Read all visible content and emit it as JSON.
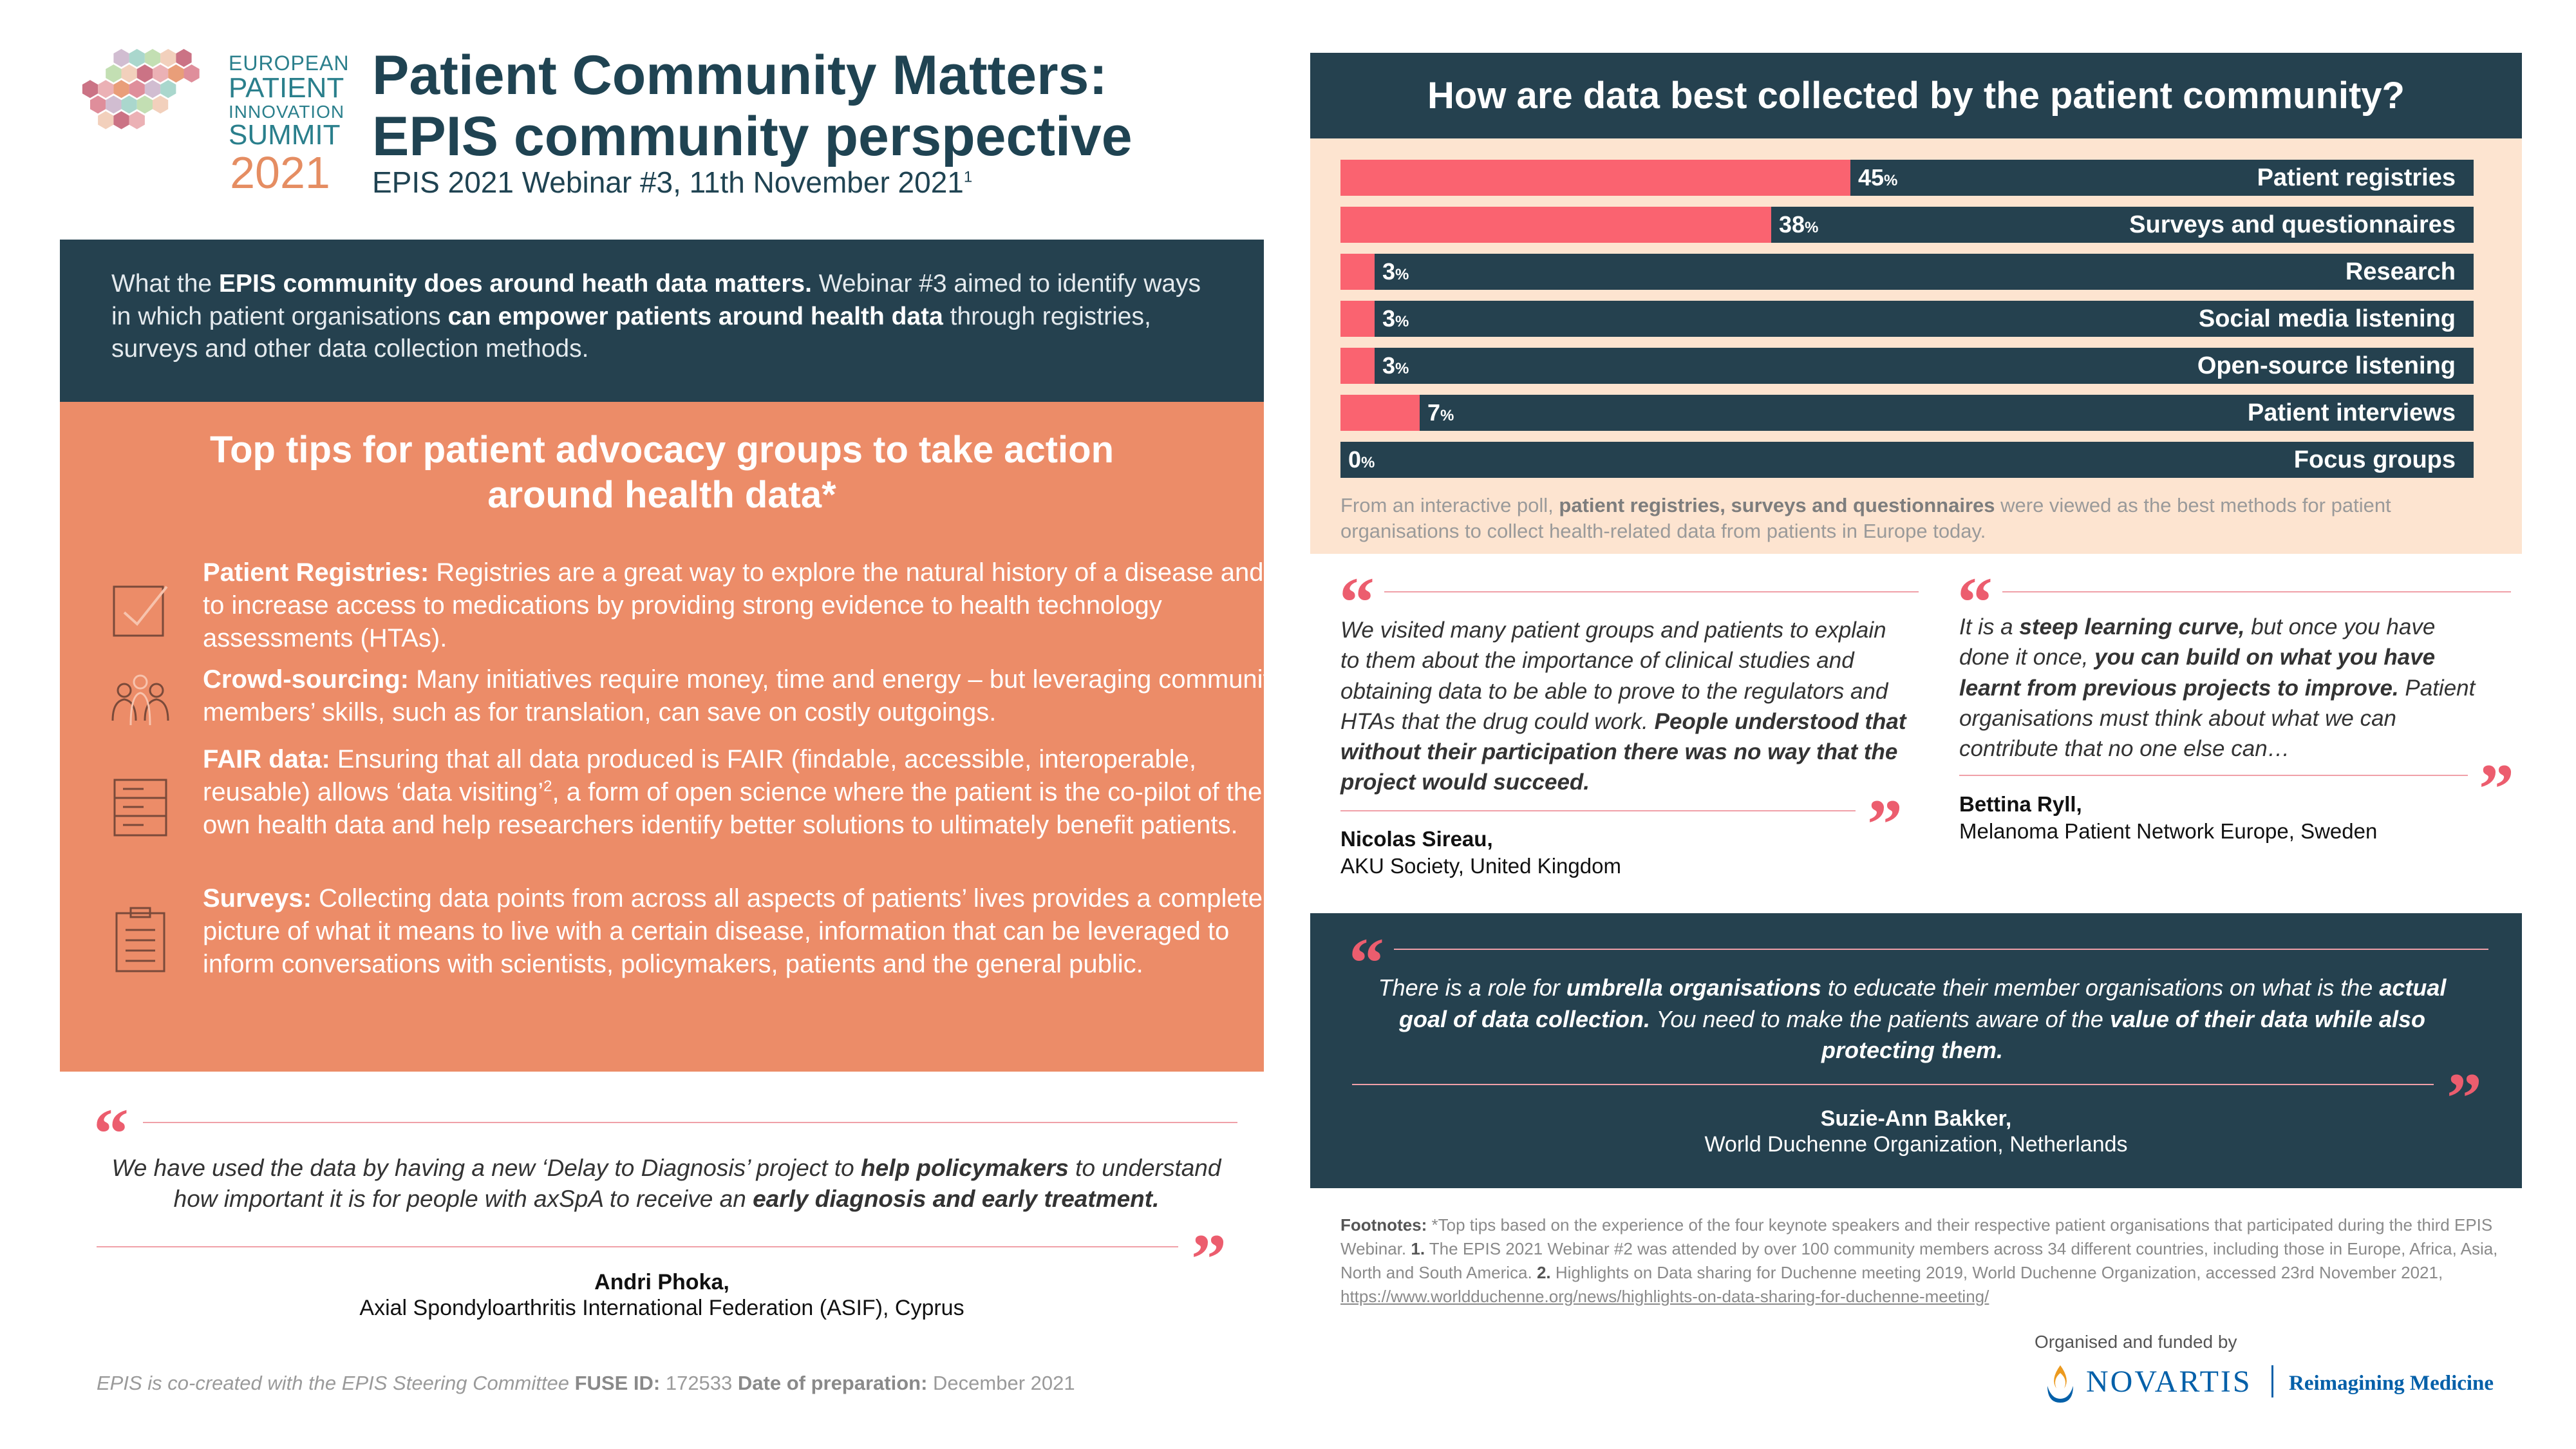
{
  "logo": {
    "line1": "EUROPEAN",
    "line2": "PATIENT",
    "line3": "INNOVATION",
    "line4": "SUMMIT",
    "year": "2021"
  },
  "header": {
    "title_line1": "Patient Community Matters:",
    "title_line2": "EPIS community perspective",
    "subtitle": "EPIS 2021 Webinar #3, 11th November 2021",
    "subtitle_sup": "1"
  },
  "intro": {
    "p1": "What the ",
    "b1": "EPIS community does around heath data matters.",
    "p2": " Webinar #3 aimed to identify ways in which patient organisations ",
    "b2": "can empower patients around health data",
    "p3": " through registries, surveys and other data collection methods."
  },
  "tips": {
    "title_line1": "Top tips for patient advocacy groups to take action",
    "title_line2": "around health data*",
    "items": [
      {
        "icon": "checkbox-icon",
        "heading": "Patient Registries:",
        "text": " Registries are a great way to explore the natural history of a disease and to increase access to medications by providing strong evidence to health technology assessments (HTAs)."
      },
      {
        "icon": "people-icon",
        "heading": "Crowd-sourcing:",
        "text": " Many initiatives require money, time and energy – but leveraging community members’ skills, such as for translation, can save on costly outgoings."
      },
      {
        "icon": "database-icon",
        "heading": "FAIR data:",
        "text_a": " Ensuring that all data produced is FAIR (findable, accessible, interoperable, reusable) allows ‘data visiting’",
        "sup": "2",
        "text_b": ", a form of open science where the patient is the co-pilot of their own health data and help researchers identify better solutions to ultimately benefit patients."
      },
      {
        "icon": "clipboard-icon",
        "heading": "Surveys:",
        "text": " Collecting data points from across all aspects of patients’ lives provides a complete picture of what it means to live with a certain disease, information that can be leveraged to inform conversations with scientists, policymakers, patients and the general public."
      }
    ]
  },
  "quote1": {
    "t1": "We have used the data by having a new ‘Delay to Diagnosis’ project to ",
    "b1": "help policymakers",
    "t2": " to understand how important it is for people with axSpA to receive an ",
    "b2": "early diagnosis and early treatment.",
    "name": "Andri Phoka,",
    "org": "Axial Spondyloarthritis International Federation (ASIF), Cyprus"
  },
  "footer": {
    "t1": "EPIS is co-created with the EPIS Steering Committee ",
    "fuse_label": "FUSE ID:",
    "fuse_id": " 172533 ",
    "date_label": "Date of preparation:",
    "date": " December 2021"
  },
  "poll": {
    "title": "How are data best collected by the patient community?",
    "note_t1": "From an interactive poll, ",
    "note_b1": "patient registries, surveys and questionnaires",
    "note_t2": " were viewed as the best methods for patient organisations to collect health-related data from patients in Europe today.",
    "pct_symbol": "%"
  },
  "chart_data": {
    "type": "bar",
    "orientation": "horizontal",
    "title": "How are data best collected by the patient community?",
    "categories": [
      "Patient registries",
      "Surveys and questionnaires",
      "Research",
      "Social media listening",
      "Open-source listening",
      "Patient interviews",
      "Focus groups"
    ],
    "values": [
      45,
      38,
      3,
      3,
      3,
      7,
      0
    ],
    "value_labels": [
      "45",
      "38",
      "3",
      "3",
      "3",
      "7",
      "0"
    ],
    "xlim": [
      0,
      100
    ],
    "fill_color": "#fa6370",
    "track_color": "#25414f"
  },
  "quote2": {
    "t1": "We visited many patient groups and patients to explain to them about the importance of clinical studies and obtaining data to be able to prove to the regulators and HTAs that the drug could work. ",
    "b1": "People understood that without their participation there was no way that the project would succeed.",
    "name": "Nicolas Sireau,",
    "org": "AKU Society, United Kingdom"
  },
  "quote3": {
    "t1": "It is a ",
    "b1": "steep learning curve,",
    "t2": " but once you have done it once, ",
    "b2": "you can build on what you have learnt from previous projects to improve.",
    "t3": " Patient organisations must think about what we can contribute that no one else can…",
    "name": "Bettina Ryll,",
    "org": "Melanoma Patient Network Europe, Sweden"
  },
  "quote4": {
    "t1": "There is a role for ",
    "b1": "umbrella organisations",
    "t2": " to educate their member organisations on what is the ",
    "b2": "actual goal of data collection.",
    "t3": " You need to make the patients aware of the ",
    "b3": "value of their data while also protecting them.",
    "name": "Suzie-Ann Bakker,",
    "org": "World Duchenne Organization, Netherlands"
  },
  "footnotes": {
    "label": "Footnotes:",
    "t1": " *Top tips based on the experience of the four keynote speakers and their respective patient organisations that participated during the third EPIS Webinar. ",
    "n1": "1.",
    "t2": " The EPIS 2021 Webinar #2 was attended by over 100 community members across 34 different countries, including those in Europe, Africa, Asia, North and South America. ",
    "n2": "2.",
    "t3": " Highlights on Data sharing for Duchenne meeting 2019, World Duchenne Organization, accessed 23rd November 2021, ",
    "link": "https://www.worldduchenne.org/news/highlights-on-data-sharing-for-duchenne-meeting/"
  },
  "sponsor": {
    "label": "Organised and funded by",
    "name": "NOVARTIS",
    "tagline": "Reimagining Medicine"
  },
  "quote_open": "“",
  "quote_close": "”",
  "colors": {
    "navy": "#25414f",
    "coral": "#ec8c68",
    "bar_fill": "#fa6370",
    "poll_bg": "#fde4d0",
    "quote_mark": "#ec5d6e"
  }
}
